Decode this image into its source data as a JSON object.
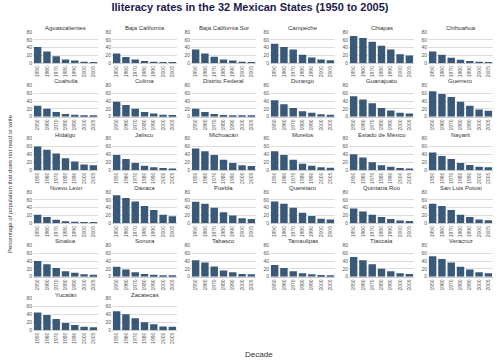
{
  "title": "Iliteracy rates in the 32 Mexican States (1950 to 2005)",
  "xlabel": "Decade",
  "ylabel": "Percentage of population that does not read or write",
  "chart_data": [
    {
      "type": "bar",
      "title": "Aguascalientes",
      "categories": [
        1950,
        1960,
        1970,
        1980,
        1990,
        2000,
        2005
      ],
      "values": [
        42,
        30,
        18,
        10,
        7,
        4,
        3
      ],
      "color": "#3a5878",
      "ylim": [
        0,
        80
      ],
      "yticks": [
        0,
        20,
        40,
        60,
        80
      ],
      "grid": true
    },
    {
      "type": "bar",
      "title": "Baja California",
      "categories": [
        1950,
        1960,
        1970,
        1980,
        1990,
        2000,
        2005
      ],
      "values": [
        25,
        16,
        10,
        6,
        4,
        3,
        2
      ],
      "color": "#3a5878",
      "ylim": [
        0,
        80
      ],
      "yticks": [
        0,
        20,
        40,
        60,
        80
      ],
      "grid": true
    },
    {
      "type": "bar",
      "title": "Baja California Sur",
      "categories": [
        1950,
        1960,
        1970,
        1980,
        1990,
        2000,
        2005
      ],
      "values": [
        35,
        25,
        17,
        10,
        7,
        4,
        3
      ],
      "color": "#3a5878",
      "ylim": [
        0,
        80
      ],
      "yticks": [
        0,
        20,
        40,
        60,
        80
      ],
      "grid": true
    },
    {
      "type": "bar",
      "title": "Campeche",
      "categories": [
        1950,
        1960,
        1970,
        1980,
        1990,
        2000,
        2005
      ],
      "values": [
        50,
        42,
        35,
        22,
        15,
        10,
        8
      ],
      "color": "#3a5878",
      "ylim": [
        0,
        80
      ],
      "yticks": [
        0,
        20,
        40,
        60,
        80
      ],
      "grid": true
    },
    {
      "type": "bar",
      "title": "Chiapas",
      "categories": [
        1950,
        1960,
        1970,
        1980,
        1990,
        2000,
        2005
      ],
      "values": [
        70,
        65,
        55,
        45,
        35,
        23,
        20
      ],
      "color": "#3a5878",
      "ylim": [
        0,
        80
      ],
      "yticks": [
        0,
        20,
        40,
        60,
        80
      ],
      "grid": true
    },
    {
      "type": "bar",
      "title": "Chihuahua",
      "categories": [
        1950,
        1960,
        1970,
        1980,
        1990,
        2000,
        2005
      ],
      "values": [
        30,
        22,
        14,
        9,
        6,
        4,
        3
      ],
      "color": "#3a5878",
      "ylim": [
        0,
        80
      ],
      "yticks": [
        0,
        20,
        40,
        60,
        80
      ],
      "grid": true
    },
    {
      "type": "bar",
      "title": "Coahuila",
      "categories": [
        1950,
        1960,
        1970,
        1980,
        1990,
        2000,
        2005
      ],
      "values": [
        28,
        20,
        12,
        7,
        5,
        3,
        2
      ],
      "color": "#3a5878",
      "ylim": [
        0,
        80
      ],
      "yticks": [
        0,
        20,
        40,
        60,
        80
      ],
      "grid": true
    },
    {
      "type": "bar",
      "title": "Colima",
      "categories": [
        1950,
        1960,
        1970,
        1980,
        1990,
        2000,
        2005
      ],
      "values": [
        38,
        30,
        20,
        12,
        8,
        5,
        4
      ],
      "color": "#3a5878",
      "ylim": [
        0,
        80
      ],
      "yticks": [
        0,
        20,
        40,
        60,
        80
      ],
      "grid": true
    },
    {
      "type": "bar",
      "title": "Distrito Federal",
      "categories": [
        1950,
        1960,
        1970,
        1980,
        1990,
        2000,
        2005
      ],
      "values": [
        20,
        12,
        7,
        4,
        3,
        2,
        2
      ],
      "color": "#3a5878",
      "ylim": [
        0,
        80
      ],
      "yticks": [
        0,
        20,
        40,
        60,
        80
      ],
      "grid": true
    },
    {
      "type": "bar",
      "title": "Durango",
      "categories": [
        1950,
        1960,
        1970,
        1980,
        1990,
        2000,
        2005
      ],
      "values": [
        42,
        32,
        22,
        14,
        10,
        6,
        5
      ],
      "color": "#3a5878",
      "ylim": [
        0,
        80
      ],
      "yticks": [
        0,
        20,
        40,
        60,
        80
      ],
      "grid": true
    },
    {
      "type": "bar",
      "title": "Guanajuato",
      "categories": [
        1950,
        1960,
        1970,
        1980,
        1990,
        2000,
        2005
      ],
      "values": [
        52,
        44,
        34,
        22,
        16,
        10,
        8
      ],
      "color": "#3a5878",
      "ylim": [
        0,
        80
      ],
      "yticks": [
        0,
        20,
        40,
        60,
        80
      ],
      "grid": true
    },
    {
      "type": "bar",
      "title": "Guerrero",
      "categories": [
        1950,
        1960,
        1970,
        1980,
        1990,
        2000,
        2005
      ],
      "values": [
        65,
        58,
        50,
        38,
        28,
        18,
        15
      ],
      "color": "#3a5878",
      "ylim": [
        0,
        80
      ],
      "yticks": [
        0,
        20,
        40,
        60,
        80
      ],
      "grid": true
    },
    {
      "type": "bar",
      "title": "Hidalgo",
      "categories": [
        1950,
        1960,
        1970,
        1980,
        1990,
        2000,
        2005
      ],
      "values": [
        60,
        52,
        42,
        30,
        22,
        14,
        12
      ],
      "color": "#3a5878",
      "ylim": [
        0,
        80
      ],
      "yticks": [
        0,
        20,
        40,
        60,
        80
      ],
      "grid": true
    },
    {
      "type": "bar",
      "title": "Jalisco",
      "categories": [
        1950,
        1960,
        1970,
        1980,
        1990,
        2000,
        2005
      ],
      "values": [
        38,
        28,
        18,
        11,
        7,
        5,
        4
      ],
      "color": "#3a5878",
      "ylim": [
        0,
        80
      ],
      "yticks": [
        0,
        20,
        40,
        60,
        80
      ],
      "grid": true
    },
    {
      "type": "bar",
      "title": "Michoacán",
      "categories": [
        1950,
        1960,
        1970,
        1980,
        1990,
        2000,
        2005
      ],
      "values": [
        55,
        48,
        38,
        26,
        18,
        12,
        10
      ],
      "color": "#3a5878",
      "ylim": [
        0,
        80
      ],
      "yticks": [
        0,
        20,
        40,
        60,
        80
      ],
      "grid": true
    },
    {
      "type": "bar",
      "title": "Morelos",
      "categories": [
        1950,
        1960,
        1970,
        1980,
        1990,
        2000,
        2005
      ],
      "values": [
        48,
        38,
        26,
        16,
        11,
        7,
        6
      ],
      "color": "#3a5878",
      "ylim": [
        0,
        80
      ],
      "yticks": [
        0,
        20,
        40,
        60,
        80
      ],
      "grid": true
    },
    {
      "type": "bar",
      "title": "Estado de México",
      "categories": [
        1950,
        1960,
        1970,
        1980,
        1990,
        2000,
        2005
      ],
      "values": [
        40,
        32,
        20,
        12,
        8,
        5,
        4
      ],
      "color": "#3a5878",
      "ylim": [
        0,
        80
      ],
      "yticks": [
        0,
        20,
        40,
        60,
        80
      ],
      "grid": true
    },
    {
      "type": "bar",
      "title": "Nayarit",
      "categories": [
        1950,
        1960,
        1970,
        1980,
        1990,
        2000,
        2005
      ],
      "values": [
        45,
        36,
        28,
        18,
        13,
        8,
        7
      ],
      "color": "#3a5878",
      "ylim": [
        0,
        80
      ],
      "yticks": [
        0,
        20,
        40,
        60,
        80
      ],
      "grid": true
    },
    {
      "type": "bar",
      "title": "Nuevo León",
      "categories": [
        1950,
        1960,
        1970,
        1980,
        1990,
        2000,
        2005
      ],
      "values": [
        22,
        16,
        9,
        5,
        4,
        3,
        2
      ],
      "color": "#3a5878",
      "ylim": [
        0,
        80
      ],
      "yticks": [
        0,
        20,
        40,
        60,
        80
      ],
      "grid": true
    },
    {
      "type": "bar",
      "title": "Oaxaca",
      "categories": [
        1950,
        1960,
        1970,
        1980,
        1990,
        2000,
        2005
      ],
      "values": [
        72,
        65,
        56,
        44,
        34,
        22,
        18
      ],
      "color": "#3a5878",
      "ylim": [
        0,
        80
      ],
      "yticks": [
        0,
        20,
        40,
        60,
        80
      ],
      "grid": true
    },
    {
      "type": "bar",
      "title": "Puebla",
      "categories": [
        1950,
        1960,
        1970,
        1980,
        1990,
        2000,
        2005
      ],
      "values": [
        55,
        50,
        40,
        28,
        20,
        13,
        11
      ],
      "color": "#3a5878",
      "ylim": [
        0,
        80
      ],
      "yticks": [
        0,
        20,
        40,
        60,
        80
      ],
      "grid": true
    },
    {
      "type": "bar",
      "title": "Querétaro",
      "categories": [
        1950,
        1960,
        1970,
        1980,
        1990,
        2000,
        2005
      ],
      "values": [
        56,
        50,
        40,
        27,
        19,
        12,
        10
      ],
      "color": "#3a5878",
      "ylim": [
        0,
        80
      ],
      "yticks": [
        0,
        20,
        40,
        60,
        80
      ],
      "grid": true
    },
    {
      "type": "bar",
      "title": "Quintana Roo",
      "categories": [
        1950,
        1960,
        1970,
        1980,
        1990,
        2000,
        2005
      ],
      "values": [
        38,
        30,
        22,
        16,
        11,
        7,
        6
      ],
      "color": "#3a5878",
      "ylim": [
        0,
        80
      ],
      "yticks": [
        0,
        20,
        40,
        60,
        80
      ],
      "grid": true
    },
    {
      "type": "bar",
      "title": "San Luis Potosí",
      "categories": [
        1950,
        1960,
        1970,
        1980,
        1990,
        2000,
        2005
      ],
      "values": [
        50,
        44,
        34,
        22,
        16,
        10,
        8
      ],
      "color": "#3a5878",
      "ylim": [
        0,
        80
      ],
      "yticks": [
        0,
        20,
        40,
        60,
        80
      ],
      "grid": true
    },
    {
      "type": "bar",
      "title": "Sinaloa",
      "categories": [
        1950,
        1960,
        1970,
        1980,
        1990,
        2000,
        2005
      ],
      "values": [
        40,
        32,
        22,
        14,
        10,
        6,
        5
      ],
      "color": "#3a5878",
      "ylim": [
        0,
        80
      ],
      "yticks": [
        0,
        20,
        40,
        60,
        80
      ],
      "grid": true
    },
    {
      "type": "bar",
      "title": "Sonora",
      "categories": [
        1950,
        1960,
        1970,
        1980,
        1990,
        2000,
        2005
      ],
      "values": [
        25,
        18,
        11,
        7,
        5,
        3,
        2
      ],
      "color": "#3a5878",
      "ylim": [
        0,
        80
      ],
      "yticks": [
        0,
        20,
        40,
        60,
        80
      ],
      "grid": true
    },
    {
      "type": "bar",
      "title": "Tabasco",
      "categories": [
        1950,
        1960,
        1970,
        1980,
        1990,
        2000,
        2005
      ],
      "values": [
        42,
        36,
        26,
        16,
        11,
        7,
        6
      ],
      "color": "#3a5878",
      "ylim": [
        0,
        80
      ],
      "yticks": [
        0,
        20,
        40,
        60,
        80
      ],
      "grid": true
    },
    {
      "type": "bar",
      "title": "Tamaulipas",
      "categories": [
        1950,
        1960,
        1970,
        1980,
        1990,
        2000,
        2005
      ],
      "values": [
        30,
        22,
        14,
        9,
        6,
        4,
        3
      ],
      "color": "#3a5878",
      "ylim": [
        0,
        80
      ],
      "yticks": [
        0,
        20,
        40,
        60,
        80
      ],
      "grid": true
    },
    {
      "type": "bar",
      "title": "Tlaxcala",
      "categories": [
        1950,
        1960,
        1970,
        1980,
        1990,
        2000,
        2005
      ],
      "values": [
        50,
        42,
        32,
        20,
        14,
        9,
        7
      ],
      "color": "#3a5878",
      "ylim": [
        0,
        80
      ],
      "yticks": [
        0,
        20,
        40,
        60,
        80
      ],
      "grid": true
    },
    {
      "type": "bar",
      "title": "Veracruz",
      "categories": [
        1950,
        1960,
        1970,
        1980,
        1990,
        2000,
        2005
      ],
      "values": [
        52,
        45,
        36,
        25,
        18,
        11,
        9
      ],
      "color": "#3a5878",
      "ylim": [
        0,
        80
      ],
      "yticks": [
        0,
        20,
        40,
        60,
        80
      ],
      "grid": true
    },
    {
      "type": "bar",
      "title": "Yucatán",
      "categories": [
        1950,
        1960,
        1970,
        1980,
        1990,
        2000,
        2005
      ],
      "values": [
        45,
        38,
        28,
        18,
        13,
        8,
        7
      ],
      "color": "#3a5878",
      "ylim": [
        0,
        80
      ],
      "yticks": [
        0,
        20,
        40,
        60,
        80
      ],
      "grid": true
    },
    {
      "type": "bar",
      "title": "Zacatecas",
      "categories": [
        1950,
        1960,
        1970,
        1980,
        1990,
        2000,
        2005
      ],
      "values": [
        48,
        40,
        30,
        20,
        15,
        9,
        8
      ],
      "color": "#3a5878",
      "ylim": [
        0,
        80
      ],
      "yticks": [
        0,
        20,
        40,
        60,
        80
      ],
      "grid": true
    }
  ]
}
